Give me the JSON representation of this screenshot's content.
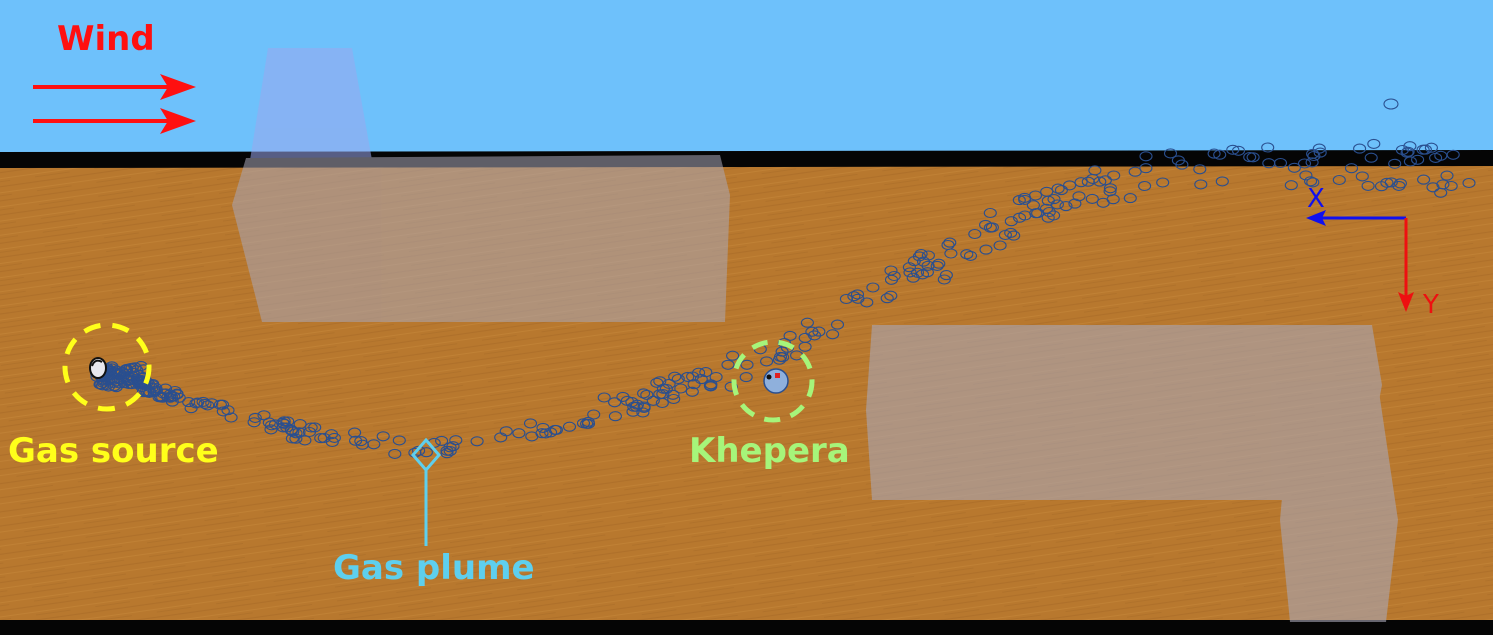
{
  "labels": {
    "wind": "Wind",
    "gas_source": "Gas source",
    "khepera": "Khepera",
    "gas_plume": "Gas plume",
    "axis_x": "X",
    "axis_y": "Y"
  },
  "colors": {
    "sky": "#6ec1fb",
    "floor": "#b8782e",
    "wall": "#000000",
    "obstacle": "#a9a7b8",
    "wind_arrow": "#ff1010",
    "gas_source_label": "#ffff1a",
    "khepera_label": "#a6f57a",
    "gas_plume_label": "#5ecfee",
    "particle": "#2a4f8f",
    "axis_x": "#1010ee",
    "axis_y": "#ee1010"
  },
  "icons": {
    "wind": "right-arrow-icon",
    "gas_source_marker": "dashed-circle-icon",
    "khepera_marker": "dashed-circle-icon",
    "plume_pointer": "diamond-pointer-icon"
  }
}
